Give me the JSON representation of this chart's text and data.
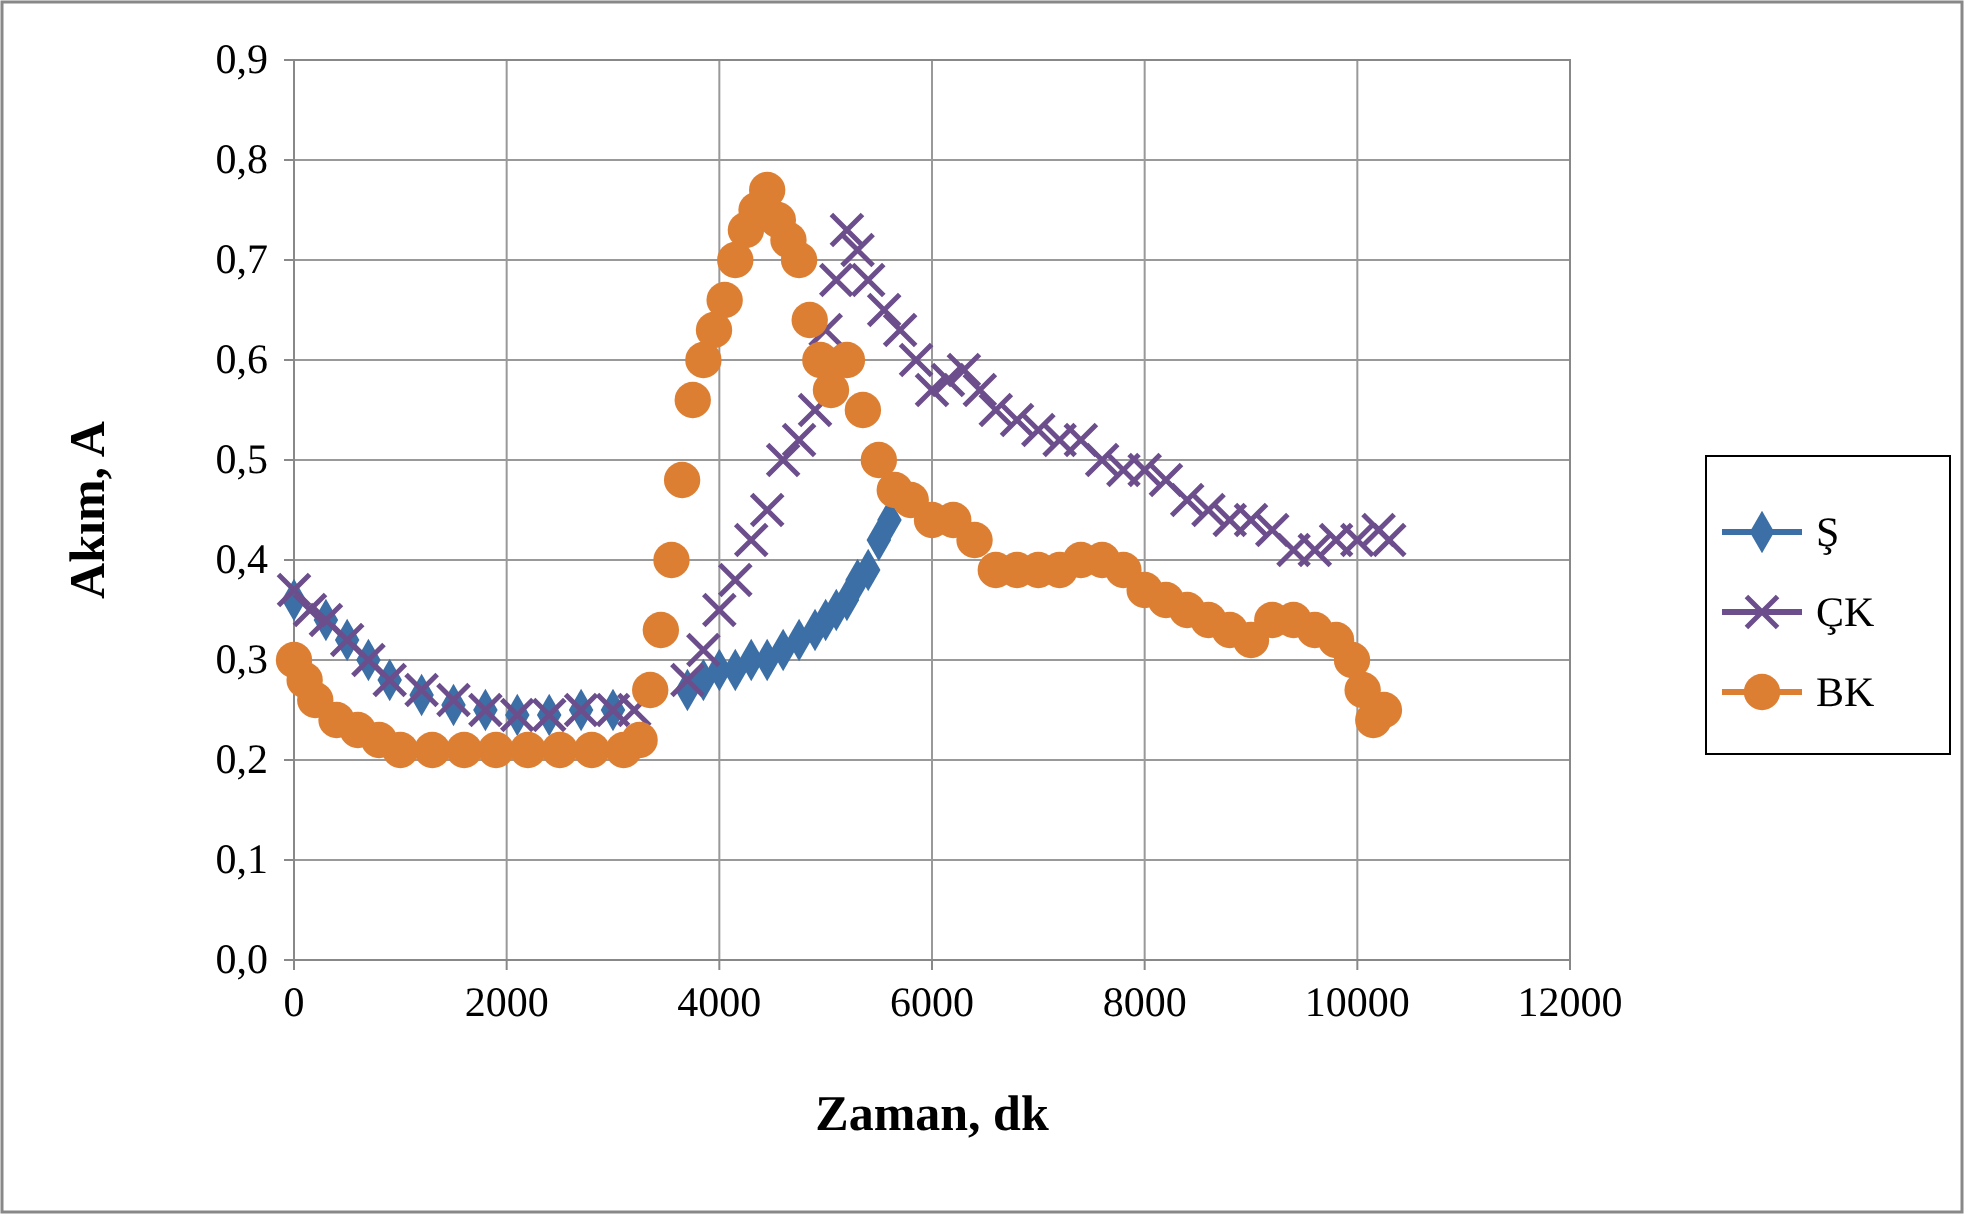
{
  "chart_data": {
    "type": "scatter",
    "xlabel": "Zaman, dk",
    "ylabel": "Akım, A",
    "xlim": [
      0,
      12000
    ],
    "xticks": [
      0,
      2000,
      4000,
      6000,
      8000,
      10000,
      12000
    ],
    "ylim": [
      0,
      0.9
    ],
    "yticks": [
      {
        "value": 0,
        "label": "0,0"
      },
      {
        "value": 0.1,
        "label": "0,1"
      },
      {
        "value": 0.2,
        "label": "0,2"
      },
      {
        "value": 0.3,
        "label": "0,3"
      },
      {
        "value": 0.4,
        "label": "0,4"
      },
      {
        "value": 0.5,
        "label": "0,5"
      },
      {
        "value": 0.6,
        "label": "0,6"
      },
      {
        "value": 0.7,
        "label": "0,7"
      },
      {
        "value": 0.8,
        "label": "0,8"
      },
      {
        "value": 0.9,
        "label": "0,9"
      }
    ],
    "grid": true,
    "legend": "right",
    "series": [
      {
        "name": "Ş",
        "color": "#3c6fa5",
        "marker": "diamond",
        "x": [
          0,
          300,
          500,
          700,
          900,
          1200,
          1500,
          1800,
          2100,
          2400,
          2700,
          3000,
          3700,
          3850,
          4000,
          4150,
          4300,
          4450,
          4600,
          4750,
          4900,
          5000,
          5100,
          5200,
          5300,
          5400,
          5500,
          5600
        ],
        "values": [
          0.36,
          0.34,
          0.32,
          0.3,
          0.28,
          0.265,
          0.255,
          0.25,
          0.245,
          0.245,
          0.25,
          0.25,
          0.27,
          0.28,
          0.29,
          0.29,
          0.3,
          0.3,
          0.31,
          0.32,
          0.33,
          0.34,
          0.35,
          0.36,
          0.38,
          0.39,
          0.42,
          0.44
        ]
      },
      {
        "name": "ÇK",
        "color": "#6d4e8d",
        "marker": "cross",
        "x": [
          0,
          150,
          300,
          500,
          700,
          900,
          1200,
          1500,
          1800,
          2100,
          2400,
          2700,
          3000,
          3200,
          3700,
          3850,
          4000,
          4150,
          4300,
          4450,
          4600,
          4750,
          4900,
          5000,
          5100,
          5200,
          5300,
          5400,
          5550,
          5700,
          5850,
          6000,
          6150,
          6300,
          6450,
          6600,
          6800,
          7000,
          7200,
          7400,
          7600,
          7800,
          8000,
          8200,
          8400,
          8600,
          8800,
          9000,
          9200,
          9400,
          9600,
          9800,
          10000,
          10200,
          10300
        ],
        "values": [
          0.37,
          0.35,
          0.34,
          0.32,
          0.3,
          0.28,
          0.27,
          0.26,
          0.25,
          0.245,
          0.245,
          0.25,
          0.25,
          0.25,
          0.28,
          0.31,
          0.35,
          0.38,
          0.42,
          0.45,
          0.5,
          0.52,
          0.55,
          0.63,
          0.68,
          0.73,
          0.71,
          0.68,
          0.65,
          0.63,
          0.6,
          0.57,
          0.58,
          0.59,
          0.57,
          0.55,
          0.54,
          0.53,
          0.52,
          0.52,
          0.5,
          0.49,
          0.49,
          0.48,
          0.46,
          0.45,
          0.44,
          0.44,
          0.43,
          0.41,
          0.41,
          0.42,
          0.42,
          0.43,
          0.42
        ]
      },
      {
        "name": "BK",
        "color": "#dd7f33",
        "marker": "circle",
        "x": [
          0,
          100,
          200,
          400,
          600,
          800,
          1000,
          1300,
          1600,
          1900,
          2200,
          2500,
          2800,
          3100,
          3250,
          3350,
          3450,
          3550,
          3650,
          3750,
          3850,
          3950,
          4050,
          4150,
          4250,
          4350,
          4450,
          4550,
          4650,
          4750,
          4850,
          4950,
          5050,
          5200,
          5350,
          5500,
          5650,
          5800,
          6000,
          6200,
          6400,
          6600,
          6800,
          7000,
          7200,
          7400,
          7600,
          7800,
          8000,
          8200,
          8400,
          8600,
          8800,
          9000,
          9200,
          9400,
          9600,
          9800,
          9950,
          10050,
          10150,
          10250
        ],
        "values": [
          0.3,
          0.28,
          0.26,
          0.24,
          0.23,
          0.22,
          0.21,
          0.21,
          0.21,
          0.21,
          0.21,
          0.21,
          0.21,
          0.21,
          0.22,
          0.27,
          0.33,
          0.4,
          0.48,
          0.56,
          0.6,
          0.63,
          0.66,
          0.7,
          0.73,
          0.75,
          0.77,
          0.74,
          0.72,
          0.7,
          0.64,
          0.6,
          0.57,
          0.6,
          0.55,
          0.5,
          0.47,
          0.46,
          0.44,
          0.44,
          0.42,
          0.39,
          0.39,
          0.39,
          0.39,
          0.4,
          0.4,
          0.39,
          0.37,
          0.36,
          0.35,
          0.34,
          0.33,
          0.32,
          0.34,
          0.34,
          0.33,
          0.32,
          0.3,
          0.27,
          0.24,
          0.25
        ]
      }
    ]
  }
}
